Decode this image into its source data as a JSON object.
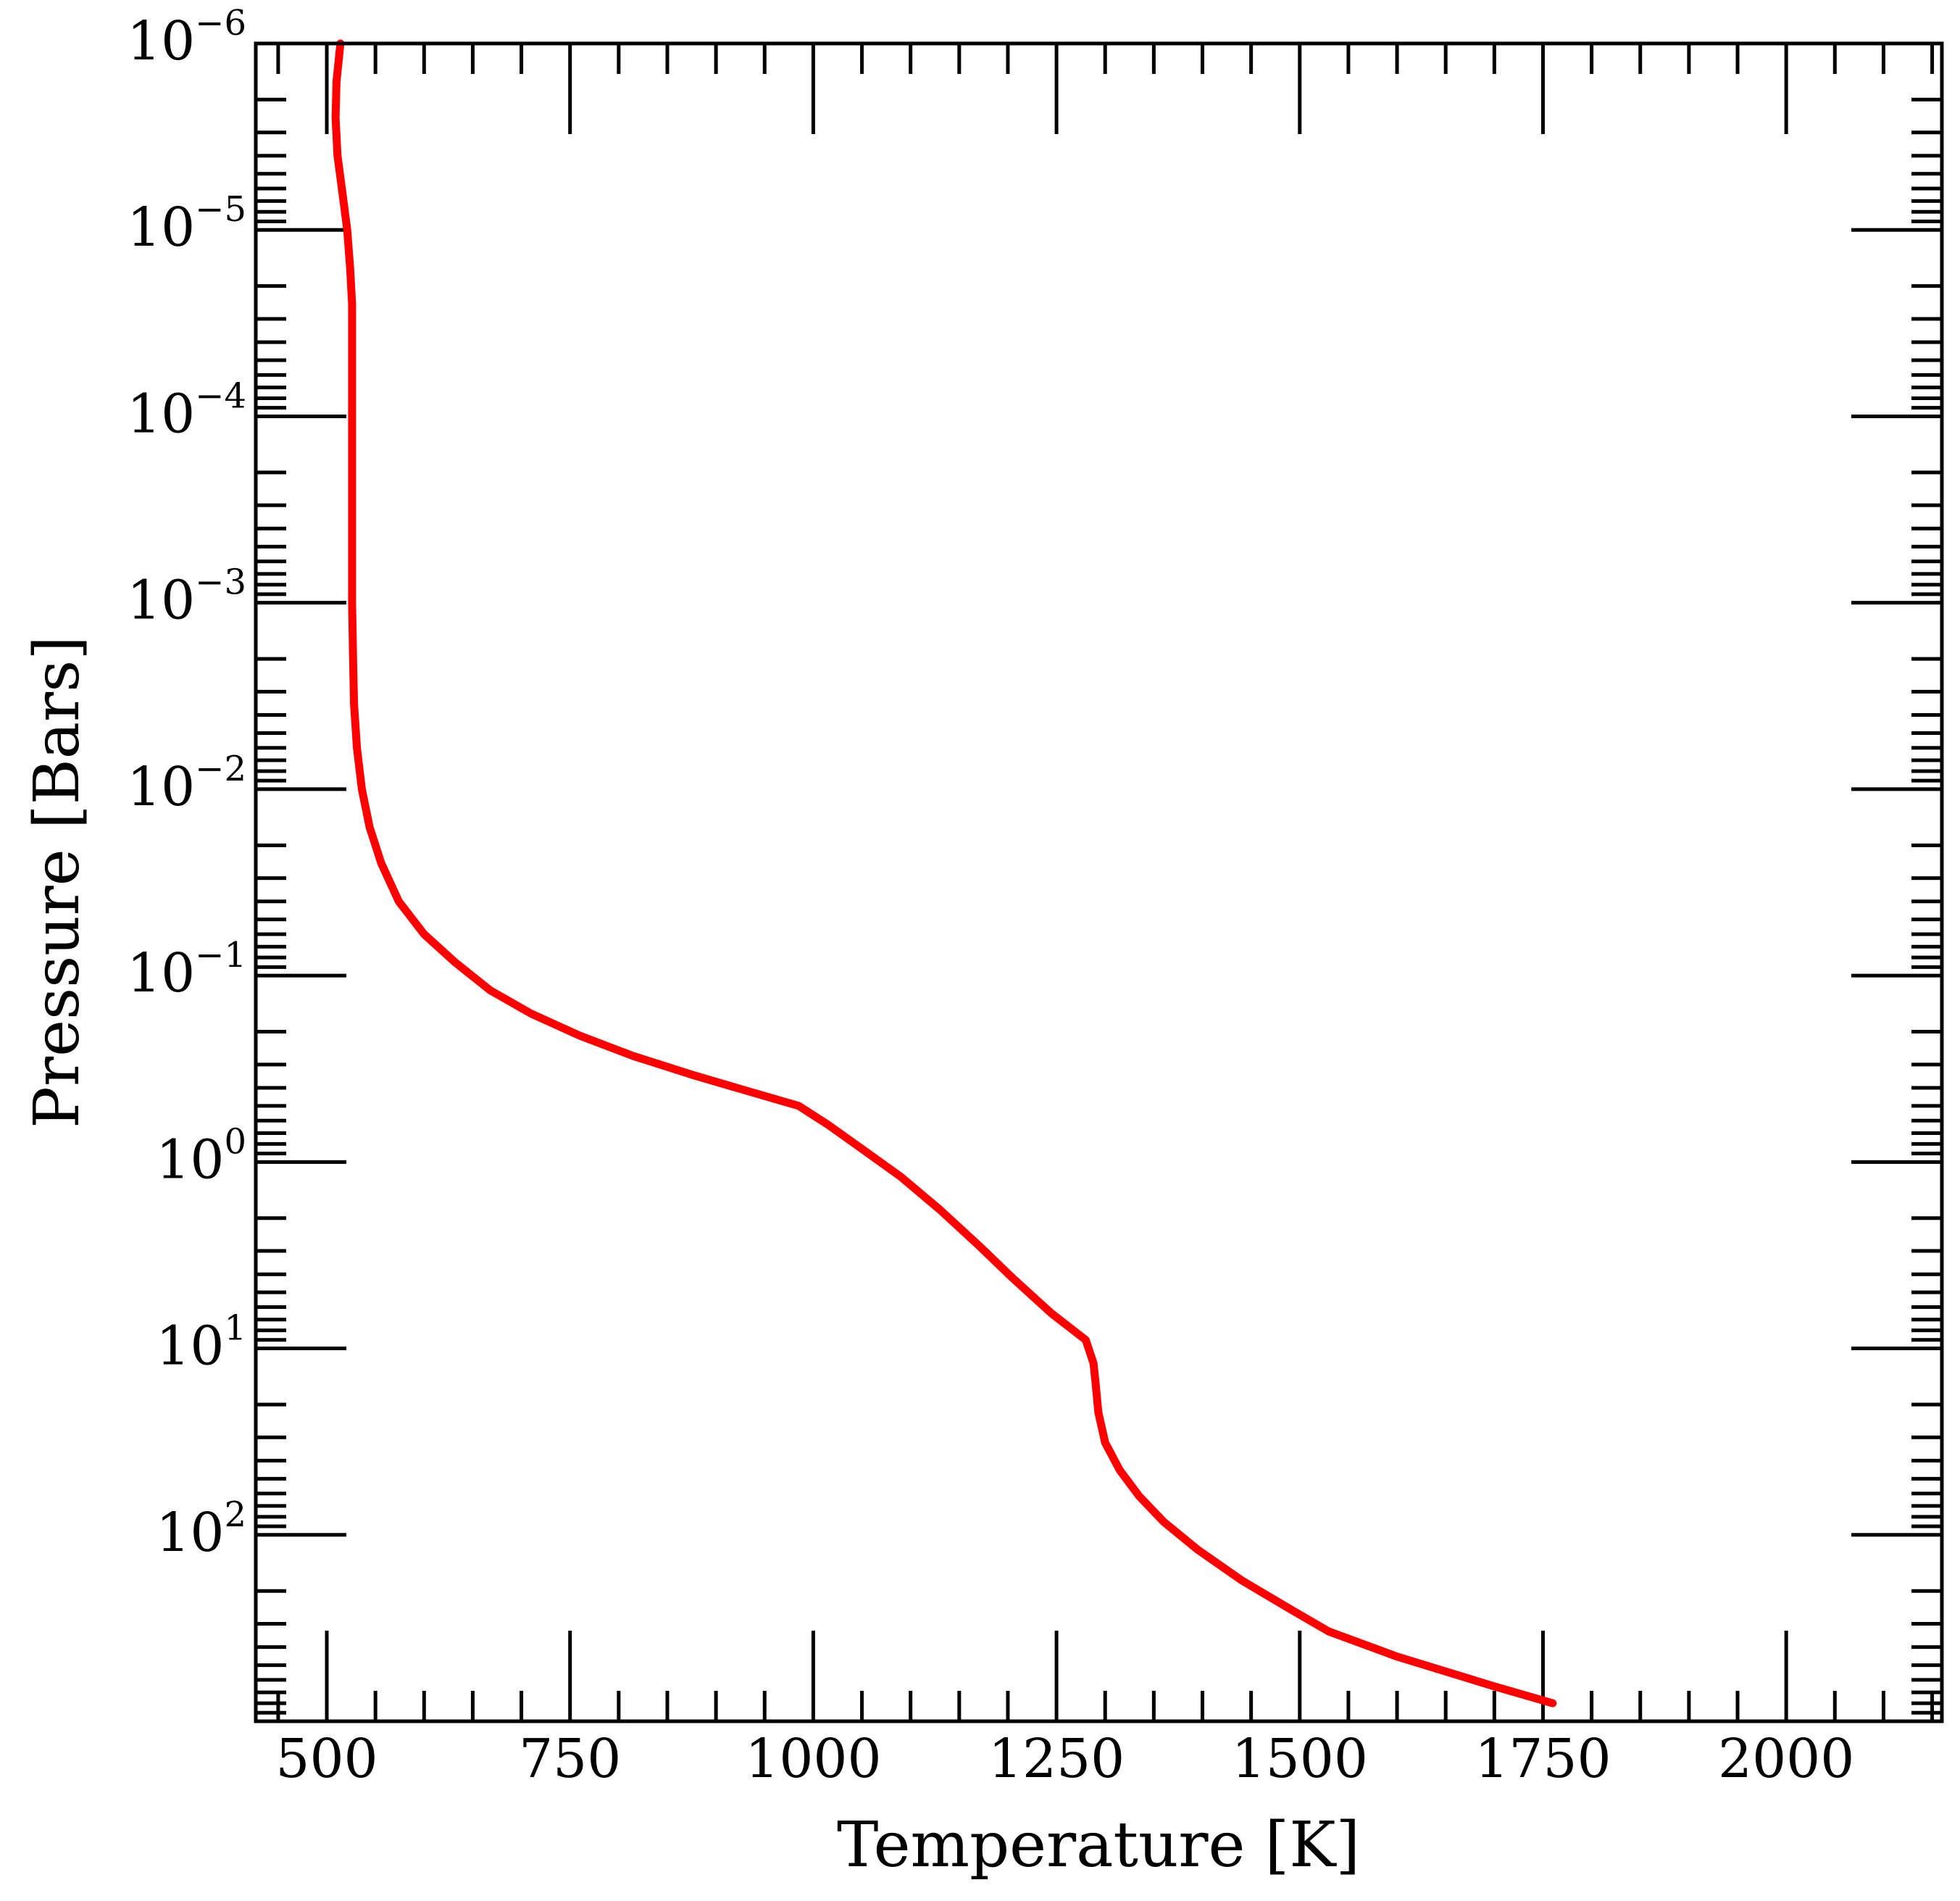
{
  "chart_data": {
    "type": "line",
    "title": "",
    "xlabel": "Temperature [K]",
    "ylabel": "Pressure [Bars]",
    "xlim": [
      427,
      2160
    ],
    "ylim": [
      1e-06,
      1000
    ],
    "y_scale": "log",
    "y_inverted": true,
    "grid": false,
    "x_ticks": [
      500,
      750,
      1000,
      1250,
      1500,
      1750,
      2000
    ],
    "x_tick_labels": [
      "500",
      "750",
      "1000",
      "1250",
      "1500",
      "1750",
      "2000"
    ],
    "y_ticks": [
      1e-06,
      1e-05,
      0.0001,
      0.001,
      0.01,
      0.1,
      1,
      10,
      100
    ],
    "y_tick_labels": [
      {
        "base": "10",
        "exp": "−6"
      },
      {
        "base": "10",
        "exp": "−5"
      },
      {
        "base": "10",
        "exp": "−4"
      },
      {
        "base": "10",
        "exp": "−3"
      },
      {
        "base": "10",
        "exp": "−2"
      },
      {
        "base": "10",
        "exp": "−1"
      },
      {
        "base": "10",
        "exp": "0"
      },
      {
        "base": "10",
        "exp": "1"
      },
      {
        "base": "10",
        "exp": "2"
      }
    ],
    "series": [
      {
        "color": "#ff0000",
        "x": [
          514,
          510,
          509,
          511,
          516,
          521,
          524,
          526,
          526,
          526,
          526,
          526,
          526,
          527,
          528,
          531,
          536,
          544,
          556,
          574,
          600,
          632,
          668,
          710,
          760,
          815,
          875,
          935,
          985,
          1015,
          1050,
          1090,
          1130,
          1170,
          1205,
          1245,
          1280,
          1288,
          1290,
          1293,
          1300,
          1315,
          1335,
          1360,
          1395,
          1440,
          1490,
          1530,
          1600,
          1700,
          1760
        ],
        "y": [
          1e-06,
          1.6e-06,
          2.5e-06,
          4e-06,
          6.3e-06,
          1e-05,
          1.6e-05,
          2.5e-05,
          4e-05,
          0.0001,
          0.00025,
          0.0006,
          0.001,
          0.002,
          0.0035,
          0.006,
          0.01,
          0.016,
          0.025,
          0.04,
          0.06,
          0.085,
          0.12,
          0.16,
          0.21,
          0.27,
          0.34,
          0.42,
          0.5,
          0.63,
          0.85,
          1.2,
          1.8,
          2.8,
          4.2,
          6.5,
          9,
          12,
          15,
          22,
          32,
          45,
          62,
          85,
          120,
          175,
          250,
          330,
          450,
          650,
          800
        ]
      }
    ]
  }
}
